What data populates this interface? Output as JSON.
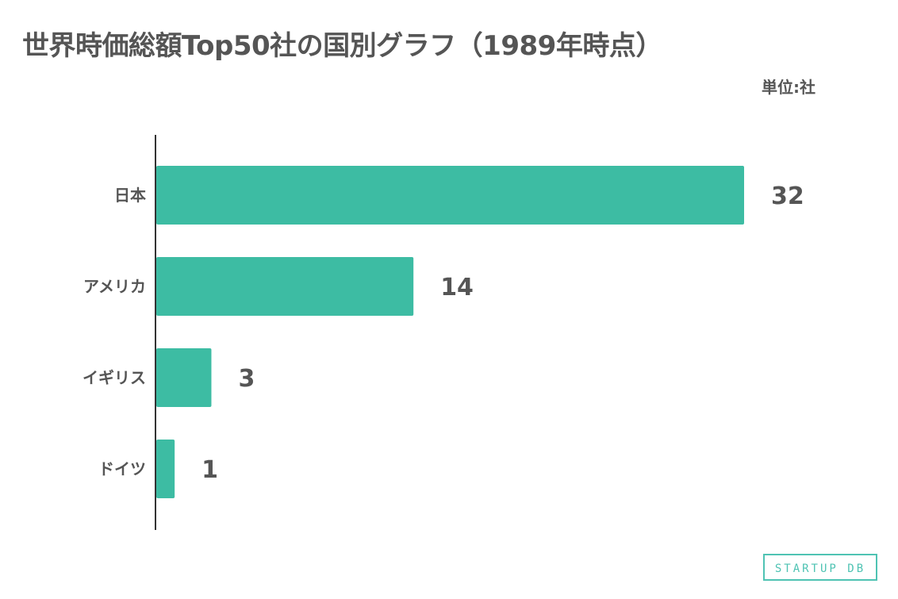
{
  "title": "世界時価総額Top50社の国別グラフ（1989年時点）",
  "unit_label": "単位:社",
  "logo_text": "STARTUP DB",
  "colors": {
    "bar": "#3dbca3",
    "text": "#555555",
    "axis": "#333333",
    "logo": "#4fc3b3"
  },
  "chart_data": {
    "type": "bar",
    "orientation": "horizontal",
    "categories": [
      "日本",
      "アメリカ",
      "イギリス",
      "ドイツ"
    ],
    "values": [
      32,
      14,
      3,
      1
    ],
    "xlim": [
      0,
      32
    ],
    "grid": false,
    "data_labels": true
  }
}
